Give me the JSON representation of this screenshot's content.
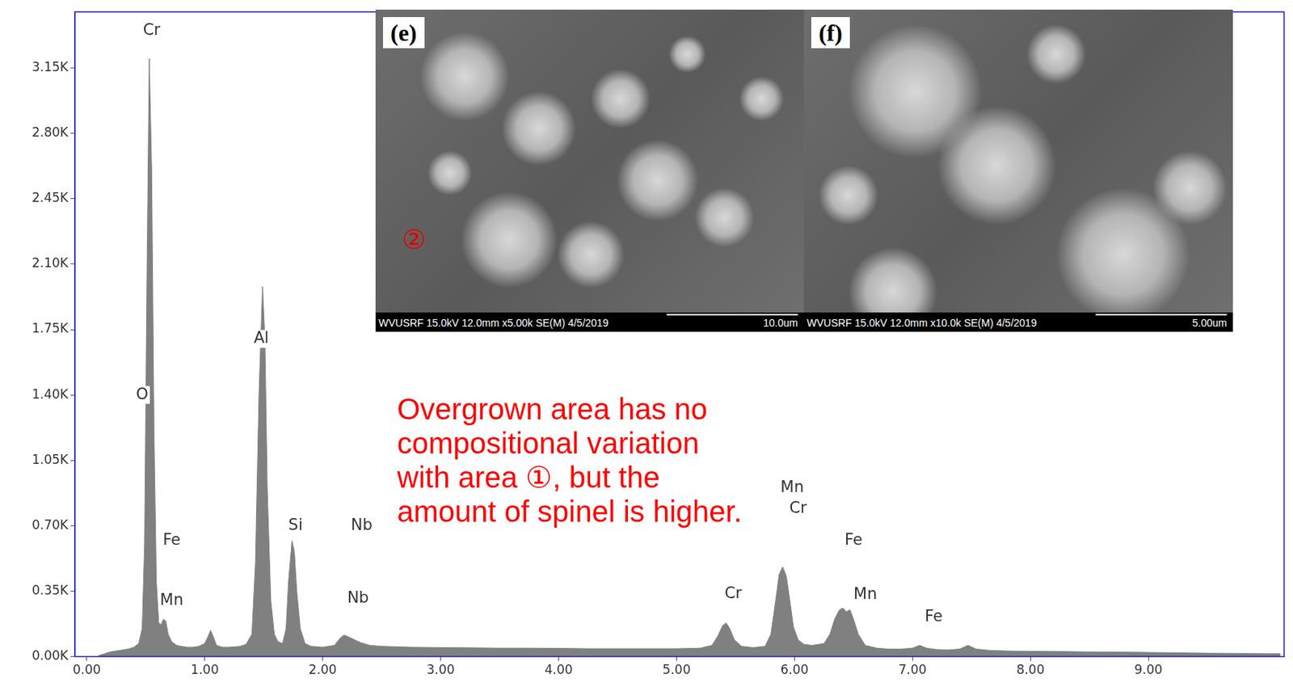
{
  "chart_data": {
    "type": "line",
    "x": [
      0.1,
      0.15,
      0.2,
      0.25,
      0.3,
      0.35,
      0.4,
      0.44,
      0.47,
      0.49,
      0.51,
      0.53,
      0.55,
      0.57,
      0.59,
      0.61,
      0.63,
      0.65,
      0.67,
      0.69,
      0.72,
      0.76,
      0.8,
      0.85,
      0.9,
      0.95,
      1.0,
      1.03,
      1.05,
      1.07,
      1.1,
      1.15,
      1.2,
      1.25,
      1.3,
      1.35,
      1.4,
      1.43,
      1.46,
      1.49,
      1.51,
      1.53,
      1.56,
      1.59,
      1.62,
      1.66,
      1.69,
      1.71,
      1.74,
      1.76,
      1.78,
      1.81,
      1.85,
      1.9,
      2.0,
      2.1,
      2.15,
      2.18,
      2.22,
      2.27,
      2.32,
      2.4,
      2.5,
      2.75,
      3.0,
      3.25,
      3.5,
      3.75,
      4.0,
      4.25,
      4.5,
      4.75,
      5.0,
      5.2,
      5.3,
      5.35,
      5.39,
      5.42,
      5.45,
      5.49,
      5.55,
      5.65,
      5.75,
      5.8,
      5.84,
      5.87,
      5.9,
      5.93,
      5.96,
      5.99,
      6.03,
      6.08,
      6.15,
      6.25,
      6.3,
      6.34,
      6.38,
      6.41,
      6.44,
      6.47,
      6.5,
      6.54,
      6.6,
      6.7,
      6.8,
      6.9,
      7.0,
      7.06,
      7.12,
      7.2,
      7.3,
      7.4,
      7.47,
      7.54,
      7.65,
      7.8,
      8.0,
      8.25,
      8.5,
      8.75,
      9.0,
      9.25,
      9.5,
      9.75,
      10.0,
      10.12
    ],
    "values": [
      5,
      15,
      25,
      30,
      35,
      40,
      50,
      70,
      150,
      600,
      2000,
      3200,
      2600,
      1200,
      400,
      180,
      170,
      200,
      190,
      120,
      80,
      60,
      55,
      50,
      50,
      55,
      70,
      110,
      140,
      110,
      60,
      50,
      50,
      52,
      55,
      65,
      120,
      500,
      1400,
      1980,
      1700,
      900,
      300,
      120,
      80,
      70,
      150,
      400,
      620,
      560,
      350,
      150,
      70,
      55,
      50,
      60,
      100,
      115,
      105,
      90,
      75,
      60,
      55,
      50,
      48,
      47,
      45,
      45,
      44,
      42,
      42,
      42,
      42,
      45,
      60,
      110,
      165,
      180,
      150,
      90,
      55,
      48,
      55,
      120,
      300,
      440,
      480,
      430,
      300,
      160,
      90,
      65,
      60,
      70,
      120,
      200,
      250,
      260,
      240,
      250,
      200,
      120,
      60,
      45,
      40,
      40,
      45,
      60,
      45,
      38,
      35,
      40,
      60,
      40,
      33,
      30,
      28,
      27,
      25,
      24,
      22,
      20,
      18,
      17,
      15,
      15
    ],
    "color": "#808080",
    "xlim": [
      -0.1,
      10.15
    ],
    "xticks": [
      {
        "value": 0,
        "label": "0.00"
      },
      {
        "value": 1,
        "label": "1.00"
      },
      {
        "value": 2,
        "label": "2.00"
      },
      {
        "value": 3,
        "label": "3.00"
      },
      {
        "value": 4,
        "label": "4.00"
      },
      {
        "value": 5,
        "label": "5.00"
      },
      {
        "value": 6,
        "label": "6.00"
      },
      {
        "value": 7,
        "label": "7.00"
      },
      {
        "value": 8,
        "label": "8.00"
      },
      {
        "value": 9,
        "label": "9.00"
      }
    ],
    "ylim": [
      0,
      3450
    ],
    "yticks": [
      {
        "value": 0,
        "label": "0.00K"
      },
      {
        "value": 350,
        "label": "0.35K"
      },
      {
        "value": 700,
        "label": "0.70K"
      },
      {
        "value": 1050,
        "label": "1.05K"
      },
      {
        "value": 1400,
        "label": "1.40K"
      },
      {
        "value": 1750,
        "label": "1.75K"
      },
      {
        "value": 2100,
        "label": "2.10K"
      },
      {
        "value": 2450,
        "label": "2.45K"
      },
      {
        "value": 2800,
        "label": "2.80K"
      },
      {
        "value": 3150,
        "label": "3.15K"
      }
    ],
    "grid": false,
    "annotations": [
      {
        "text": "Cr",
        "x": 0.55,
        "y": 3350
      },
      {
        "text": "O",
        "x": 0.47,
        "y": 1400
      },
      {
        "text": "Fe",
        "x": 0.72,
        "y": 620
      },
      {
        "text": "Mn",
        "x": 0.72,
        "y": 300
      },
      {
        "text": "Al",
        "x": 1.48,
        "y": 1700
      },
      {
        "text": "Si",
        "x": 1.77,
        "y": 700
      },
      {
        "text": "Nb",
        "x": 2.33,
        "y": 700
      },
      {
        "text": "Nb",
        "x": 2.3,
        "y": 310
      },
      {
        "text": "Cr",
        "x": 5.48,
        "y": 335
      },
      {
        "text": "Mn",
        "x": 5.98,
        "y": 900
      },
      {
        "text": "Cr",
        "x": 6.03,
        "y": 790
      },
      {
        "text": "Fe",
        "x": 6.5,
        "y": 620
      },
      {
        "text": "Mn",
        "x": 6.6,
        "y": 330
      },
      {
        "text": "Fe",
        "x": 7.18,
        "y": 212
      }
    ],
    "callout": "Overgrown area has no\ncompositional variation\nwith area ①, but the\namount of spinel is higher."
  },
  "insets": [
    {
      "label": "(e)",
      "mark_label": "②",
      "footer": "WVUSRF 15.0kV 12.0mm x5.00k SE(M) 4/5/2019",
      "scale": "10.0um"
    },
    {
      "label": "(f)",
      "footer": "WVUSRF 15.0kV 12.0mm x10.0k SE(M) 4/5/2019",
      "scale": "5.00um"
    }
  ]
}
